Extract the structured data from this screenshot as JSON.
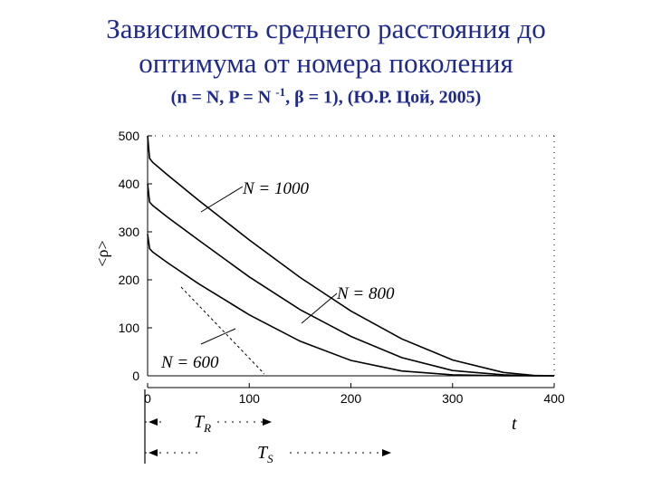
{
  "title_line1": "Зависимость среднего расстояния до",
  "title_line2": "оптимума от номера поколения",
  "subtitle": {
    "part1": "(n = N, P = N ",
    "sup": "-1",
    "part2": ", β = 1), (Ю.Р. Цой, 2005)"
  },
  "chart_data": {
    "type": "line",
    "ylabel": "<ρ>",
    "xlabel": "t",
    "xlim": [
      0,
      400
    ],
    "ylim": [
      0,
      500
    ],
    "x_ticks": [
      "0",
      "100",
      "200",
      "300",
      "400"
    ],
    "y_ticks": [
      "0",
      "100",
      "200",
      "300",
      "400",
      "500"
    ],
    "series": [
      {
        "name": "N = 1000",
        "x": [
          0,
          2,
          5,
          20,
          50,
          100,
          150,
          200,
          250,
          300,
          350,
          380,
          400
        ],
        "y": [
          500,
          453,
          445,
          418,
          366,
          283,
          205,
          135,
          77,
          33,
          7,
          1,
          0
        ]
      },
      {
        "name": "N = 800",
        "x": [
          0,
          2,
          5,
          20,
          50,
          100,
          150,
          200,
          250,
          300,
          350,
          380,
          400
        ],
        "y": [
          400,
          362,
          355,
          330,
          283,
          206,
          138,
          82,
          38,
          11,
          2,
          0,
          0
        ]
      },
      {
        "name": "N = 600",
        "x": [
          0,
          2,
          5,
          20,
          50,
          100,
          150,
          200,
          250,
          300,
          350,
          380,
          400
        ],
        "y": [
          295,
          265,
          258,
          235,
          192,
          127,
          72,
          32,
          10,
          2,
          0,
          0,
          0
        ]
      }
    ],
    "annotations": {
      "tr_label": "T",
      "tr_sub": "R",
      "ts_label": "T",
      "ts_sub": "S"
    }
  }
}
